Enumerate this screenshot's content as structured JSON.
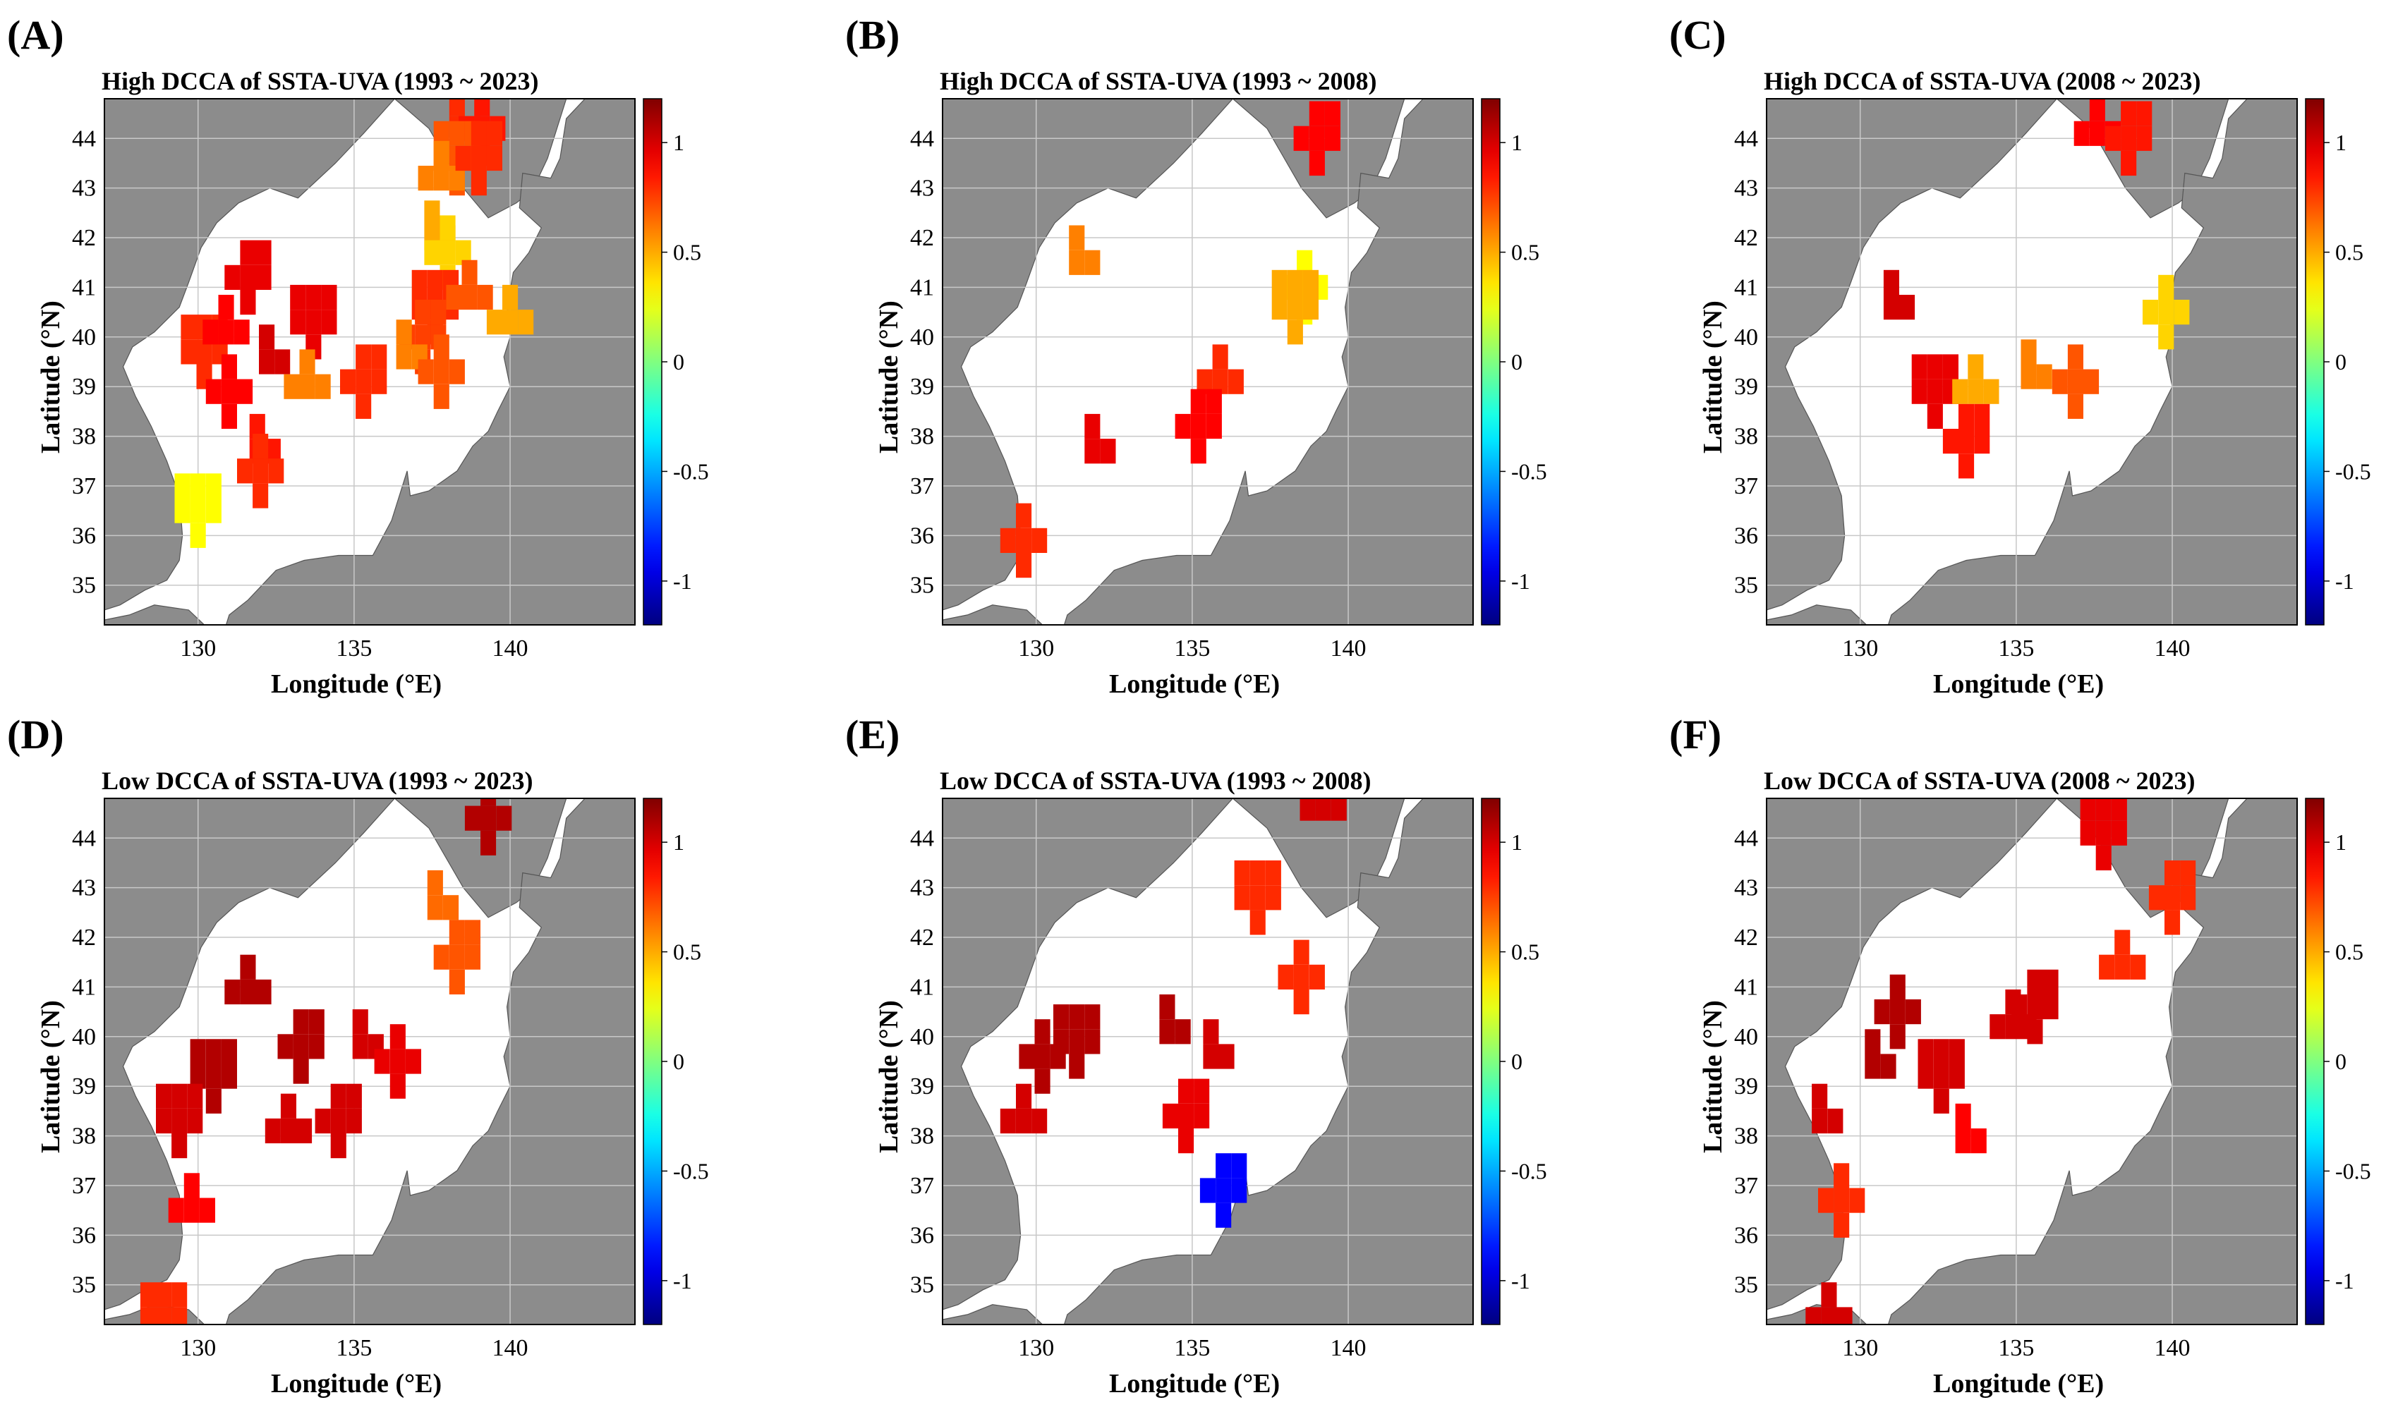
{
  "panels": [
    {
      "letter": "(A)",
      "title": "High DCCA of SSTA-UVA (1993 ~ 2023)",
      "palette": "hot"
    },
    {
      "letter": "(B)",
      "title": "High DCCA of SSTA-UVA (1993 ~ 2008)",
      "palette": "mixed"
    },
    {
      "letter": "(C)",
      "title": "High DCCA of SSTA-UVA (2008 ~ 2023)",
      "palette": "mixed"
    },
    {
      "letter": "(D)",
      "title": "Low DCCA of SSTA-UVA (1993 ~ 2023)",
      "palette": "dark"
    },
    {
      "letter": "(E)",
      "title": "Low DCCA of SSTA-UVA (1993 ~ 2008)",
      "palette": "dark"
    },
    {
      "letter": "(F)",
      "title": "Low DCCA of SSTA-UVA (2008 ~ 2023)",
      "palette": "dark"
    }
  ],
  "axes": {
    "xlabel": "Longitude (°E)",
    "ylabel": "Latitude (°N)",
    "lon_range": [
      127,
      144
    ],
    "lat_range": [
      34.2,
      44.8
    ],
    "lon_ticks": [
      130,
      135,
      140
    ],
    "lat_ticks": [
      35,
      36,
      37,
      38,
      39,
      40,
      41,
      42,
      43,
      44
    ],
    "lon_tick_labels": [
      "130",
      "135",
      "140"
    ],
    "lat_tick_labels": [
      "35",
      "36",
      "37",
      "38",
      "39",
      "40",
      "41",
      "42",
      "43",
      "44"
    ]
  },
  "colorbar": {
    "range": [
      -1.2,
      1.2
    ],
    "ticks": [
      1,
      0.5,
      0,
      -0.5,
      -1
    ],
    "tick_labels": [
      "1",
      "0.5",
      "0",
      "-0.5",
      "-1"
    ]
  },
  "colors": {
    "land": "#8c8c8c",
    "sea": "#ffffff",
    "grid": "#c8c8c8",
    "dark_red": "#a80000",
    "red": "#ff1a00",
    "orange": "#ff6a00",
    "yellow": "#ffd000"
  },
  "chart_data": {
    "type": "heatmap",
    "value_range": [
      -1.2,
      1.2
    ],
    "panels": [
      {
        "id": "A",
        "cells": [
          [
            138.3,
            44.2,
            0.8
          ],
          [
            139.1,
            44.2,
            0.85
          ],
          [
            138.3,
            43.6,
            0.7
          ],
          [
            137.8,
            43.2,
            0.6
          ],
          [
            139.0,
            43.6,
            0.8
          ],
          [
            137.5,
            42.0,
            0.5
          ],
          [
            138.0,
            41.7,
            0.4
          ],
          [
            137.6,
            40.6,
            0.8
          ],
          [
            138.7,
            40.8,
            0.7
          ],
          [
            137.2,
            40.0,
            0.75
          ],
          [
            136.6,
            39.6,
            0.6
          ],
          [
            137.8,
            39.3,
            0.7
          ],
          [
            130.2,
            39.7,
            0.8
          ],
          [
            130.9,
            40.1,
            0.9
          ],
          [
            131.6,
            41.2,
            0.95
          ],
          [
            132.2,
            39.5,
            1.0
          ],
          [
            131.0,
            38.9,
            0.9
          ],
          [
            133.7,
            40.3,
            0.95
          ],
          [
            133.5,
            39.0,
            0.6
          ],
          [
            135.3,
            39.1,
            0.8
          ],
          [
            131.9,
            37.7,
            0.85
          ],
          [
            132.0,
            37.3,
            0.8
          ],
          [
            130.0,
            36.5,
            0.3
          ],
          [
            140.0,
            40.3,
            0.5
          ]
        ]
      },
      {
        "id": "B",
        "cells": [
          [
            139.0,
            44.0,
            0.9
          ],
          [
            131.3,
            41.5,
            0.6
          ],
          [
            138.6,
            41.0,
            0.3
          ],
          [
            138.3,
            40.6,
            0.5
          ],
          [
            135.9,
            39.1,
            0.8
          ],
          [
            135.2,
            38.2,
            0.9
          ],
          [
            131.8,
            37.7,
            0.95
          ],
          [
            129.6,
            35.9,
            0.8
          ]
        ]
      },
      {
        "id": "C",
        "cells": [
          [
            137.6,
            44.1,
            0.9
          ],
          [
            138.6,
            44.0,
            0.85
          ],
          [
            131.0,
            40.6,
            1.0
          ],
          [
            139.8,
            40.5,
            0.4
          ],
          [
            132.4,
            38.9,
            0.95
          ],
          [
            133.7,
            38.9,
            0.5
          ],
          [
            133.4,
            37.9,
            0.85
          ],
          [
            135.4,
            39.2,
            0.6
          ],
          [
            136.9,
            39.1,
            0.7
          ]
        ]
      },
      {
        "id": "D",
        "cells": [
          [
            130.5,
            39.2,
            1.15
          ],
          [
            131.6,
            40.9,
            1.05
          ],
          [
            133.3,
            39.8,
            1.1
          ],
          [
            135.2,
            39.8,
            1.0
          ],
          [
            136.4,
            39.5,
            0.95
          ],
          [
            129.4,
            38.3,
            1.0
          ],
          [
            129.8,
            36.5,
            0.9
          ],
          [
            138.3,
            41.6,
            0.7
          ],
          [
            137.6,
            42.6,
            0.65
          ],
          [
            139.3,
            44.4,
            1.1
          ],
          [
            128.9,
            34.3,
            0.8
          ],
          [
            132.9,
            38.1,
            1.0
          ],
          [
            134.5,
            38.3,
            1.0
          ]
        ]
      },
      {
        "id": "E",
        "cells": [
          [
            130.2,
            39.6,
            1.2
          ],
          [
            131.3,
            39.9,
            1.05
          ],
          [
            129.6,
            38.3,
            1.0
          ],
          [
            134.8,
            38.4,
            0.95
          ],
          [
            135.6,
            39.6,
            1.0
          ],
          [
            138.5,
            41.2,
            0.8
          ],
          [
            137.1,
            42.8,
            0.8
          ],
          [
            139.2,
            44.6,
            1.0
          ],
          [
            136.0,
            36.9,
            -0.9
          ],
          [
            134.2,
            40.1,
            1.2
          ]
        ]
      },
      {
        "id": "F",
        "cells": [
          [
            130.4,
            39.4,
            1.2
          ],
          [
            131.2,
            40.5,
            1.05
          ],
          [
            132.6,
            39.2,
            1.0
          ],
          [
            134.9,
            40.2,
            1.0
          ],
          [
            135.6,
            40.6,
            1.0
          ],
          [
            128.7,
            38.3,
            1.0
          ],
          [
            129.0,
            34.3,
            1.0
          ],
          [
            137.8,
            44.1,
            0.95
          ],
          [
            138.4,
            41.4,
            0.8
          ],
          [
            140.0,
            42.8,
            0.8
          ],
          [
            133.3,
            37.9,
            0.9
          ],
          [
            129.4,
            36.7,
            0.8
          ]
        ]
      }
    ]
  }
}
